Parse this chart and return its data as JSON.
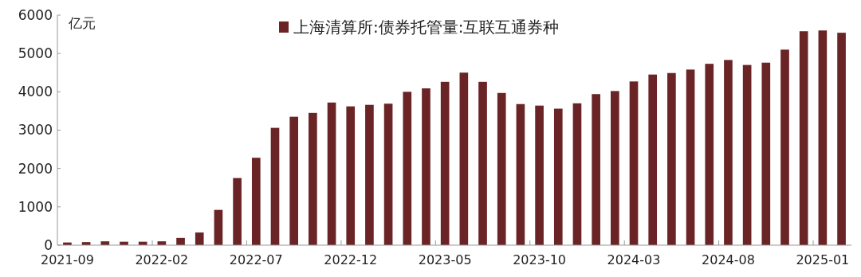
{
  "chart_data": {
    "type": "bar",
    "ylabel": "亿元",
    "legend": "top",
    "categories": [
      "2021-09",
      null,
      null,
      null,
      null,
      "2022-02",
      null,
      null,
      null,
      null,
      "2022-07",
      null,
      null,
      null,
      null,
      "2022-12",
      null,
      null,
      null,
      null,
      "2023-05",
      null,
      null,
      null,
      null,
      "2023-10",
      null,
      null,
      null,
      null,
      "2024-03",
      null,
      null,
      null,
      null,
      "2024-08",
      null,
      null,
      null,
      null,
      "2025-01",
      null
    ],
    "series": [
      {
        "name": "上海清算所:债券托管量:互联互通券种",
        "color": "#6b2426",
        "values": [
          70,
          80,
          100,
          90,
          90,
          100,
          190,
          330,
          920,
          1750,
          2280,
          3060,
          3350,
          3450,
          3720,
          3620,
          3660,
          3690,
          4000,
          4090,
          4260,
          4500,
          4260,
          3970,
          3680,
          3640,
          3560,
          3700,
          3940,
          4020,
          4270,
          4450,
          4490,
          4580,
          4730,
          4830,
          4700,
          4760,
          5100,
          5580,
          5600,
          5540
        ]
      }
    ],
    "ylim": [
      0,
      6000
    ],
    "yticks": [
      0,
      1000,
      2000,
      3000,
      4000,
      5000,
      6000
    ],
    "grid": false
  }
}
